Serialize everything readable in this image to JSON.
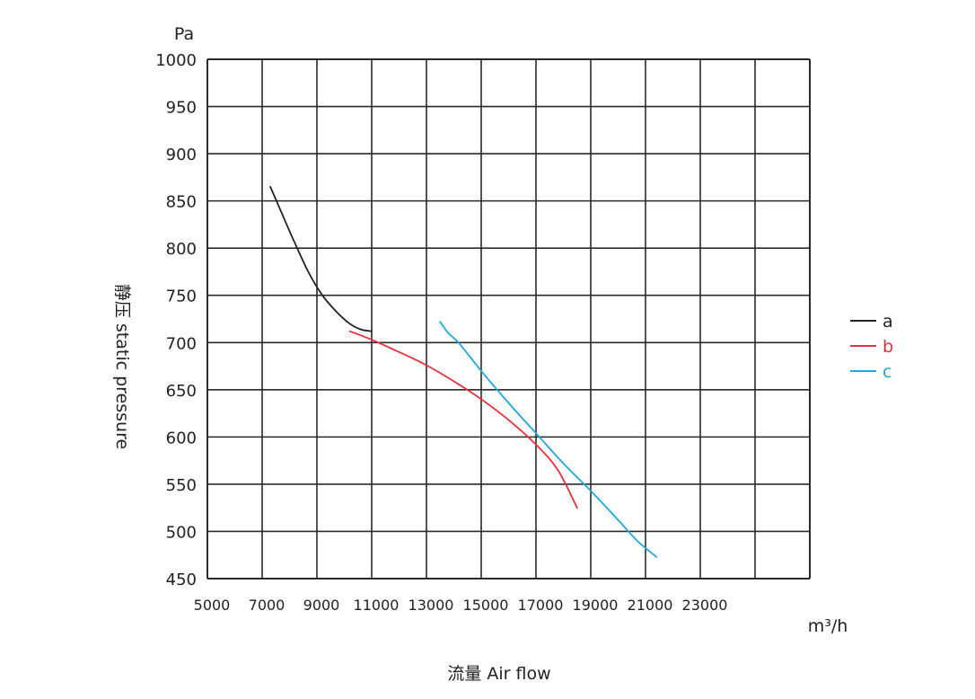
{
  "chart_data": {
    "type": "line",
    "title": "",
    "y_unit": "Pa",
    "x_unit": "m³/h",
    "ylabel": "静压 static pressure",
    "xlabel": "流量 Air flow",
    "yticks": [
      450,
      500,
      550,
      600,
      650,
      700,
      750,
      800,
      850,
      900,
      950,
      1000
    ],
    "ylim": [
      450,
      1000
    ],
    "xticks": [
      5000,
      7000,
      9000,
      11000,
      13000,
      15000,
      17000,
      19000,
      21000,
      23000
    ],
    "xlim": [
      5000,
      27000
    ],
    "grid": true,
    "legend_position": "right",
    "series": [
      {
        "name": "a",
        "color": "#222222",
        "x": [
          7300,
          7700,
          8200,
          8700,
          9200,
          9700,
          10200,
          10600,
          11000
        ],
        "y": [
          865,
          838,
          805,
          774,
          750,
          733,
          720,
          714,
          712
        ]
      },
      {
        "name": "b",
        "color": "#e8303a",
        "x": [
          10200,
          11000,
          12000,
          13000,
          14000,
          15000,
          16000,
          17000,
          17800,
          18500
        ],
        "y": [
          712,
          703,
          690,
          676,
          659,
          640,
          618,
          592,
          565,
          525
        ]
      },
      {
        "name": "c",
        "color": "#1ea7e1",
        "x": [
          13500,
          13800,
          14200,
          15000,
          16000,
          17000,
          18000,
          19000,
          20000,
          20700,
          21400
        ],
        "y": [
          722,
          710,
          699,
          670,
          636,
          604,
          572,
          543,
          512,
          490,
          473
        ]
      }
    ]
  }
}
